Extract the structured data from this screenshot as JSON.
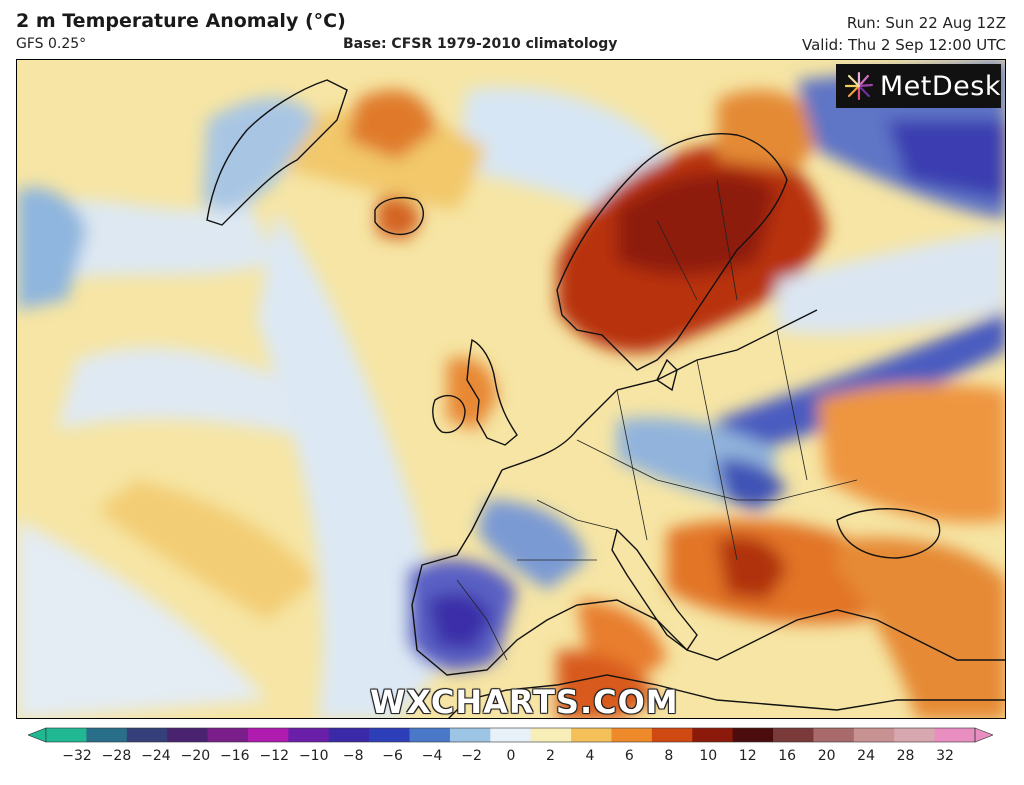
{
  "header": {
    "title": "2 m Temperature Anomaly (°C)",
    "model": "GFS 0.25°",
    "base": "Base: CFSR 1979-2010 climatology",
    "run": "Run: Sun 22 Aug 12Z",
    "valid": "Valid: Thu 2 Sep 12:00 UTC"
  },
  "logo": {
    "text": "MetDesk",
    "icon": "metdesk-sunburst-icon"
  },
  "watermark": "WXCHARTS.COM",
  "colorbar": {
    "ticks": [
      "−32",
      "−28",
      "−24",
      "−20",
      "−16",
      "−12",
      "−10",
      "−8",
      "−6",
      "−4",
      "−2",
      "0",
      "2",
      "4",
      "6",
      "8",
      "10",
      "12",
      "16",
      "20",
      "24",
      "28",
      "32"
    ],
    "colors": [
      "#1fb893",
      "#2a6f8a",
      "#35407a",
      "#4a2370",
      "#7a1e8a",
      "#b01bb0",
      "#6a1fa8",
      "#3a2aa8",
      "#2d3fb8",
      "#4a78c8",
      "#9cc4e4",
      "#e8f0f8",
      "#f8eeb8",
      "#f4c05a",
      "#ee8a2a",
      "#d04812",
      "#8c1a0a",
      "#4a0c0c",
      "#7a3a3a",
      "#a86a6a",
      "#c89292",
      "#d8a8b0",
      "#e88ec0"
    ]
  },
  "colors": {
    "warm_light": "#f7e7a9",
    "warm": "#f2c15d",
    "hot": "#e0681e",
    "very_hot": "#a6250e",
    "cool": "#d9e8f5",
    "cold": "#7aa8d8",
    "very_cold": "#3a3fb0"
  }
}
